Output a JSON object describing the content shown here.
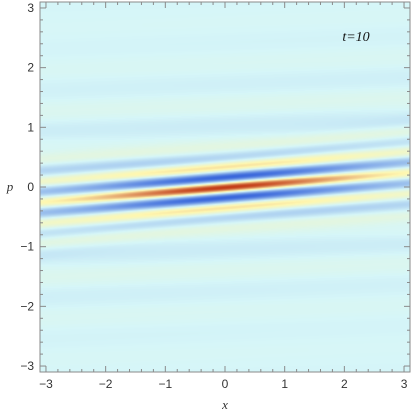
{
  "chart_data": {
    "type": "heatmap",
    "title": "",
    "xlabel": "x",
    "ylabel": "p",
    "annotation": "t=10",
    "annotation_position": "top-right",
    "xlim": [
      -3.1,
      3.1
    ],
    "ylim": [
      -3.1,
      3.1
    ],
    "x_ticks": [
      -3,
      -2,
      -1,
      0,
      1,
      2,
      3
    ],
    "x_tick_labels": [
      "−3",
      "−2",
      "−1",
      "0",
      "1",
      "2",
      "3"
    ],
    "y_ticks": [
      -3,
      -2,
      -1,
      0,
      1,
      2,
      3
    ],
    "y_tick_labels": [
      "−3",
      "−2",
      "−1",
      "0",
      "1",
      "2",
      "3"
    ],
    "grid": false,
    "colormap": {
      "negative": "#1f4fd6",
      "zero": "#d6f6f8",
      "positive_low": "#fff7b0",
      "positive_high": "#c23a16"
    },
    "background_color": "#d6f6f8",
    "features": [
      {
        "p": 0.0,
        "x_center": 0.0,
        "sign": "positive",
        "intensity": 1.0,
        "x_extent": [
          -3.0,
          3.0
        ]
      },
      {
        "p": 0.18,
        "x_center": 0.5,
        "sign": "negative",
        "intensity": 1.0,
        "x_extent": [
          -2.0,
          2.8
        ]
      },
      {
        "p": -0.18,
        "x_center": -0.3,
        "sign": "negative",
        "intensity": 0.85,
        "x_extent": [
          -2.8,
          2.0
        ]
      },
      {
        "p": 0.38,
        "x_center": 0.3,
        "sign": "positive",
        "intensity": 0.45,
        "x_extent": [
          -3.0,
          3.0
        ]
      },
      {
        "p": -0.35,
        "x_center": -0.3,
        "sign": "positive",
        "intensity": 0.4,
        "x_extent": [
          -3.0,
          3.0
        ]
      },
      {
        "p": 0.55,
        "x_center": 0.5,
        "sign": "negative",
        "intensity": 0.3,
        "x_extent": [
          -3.0,
          3.0
        ]
      },
      {
        "p": -0.55,
        "x_center": -0.5,
        "sign": "negative",
        "intensity": 0.3,
        "x_extent": [
          -3.0,
          3.0
        ]
      }
    ]
  }
}
